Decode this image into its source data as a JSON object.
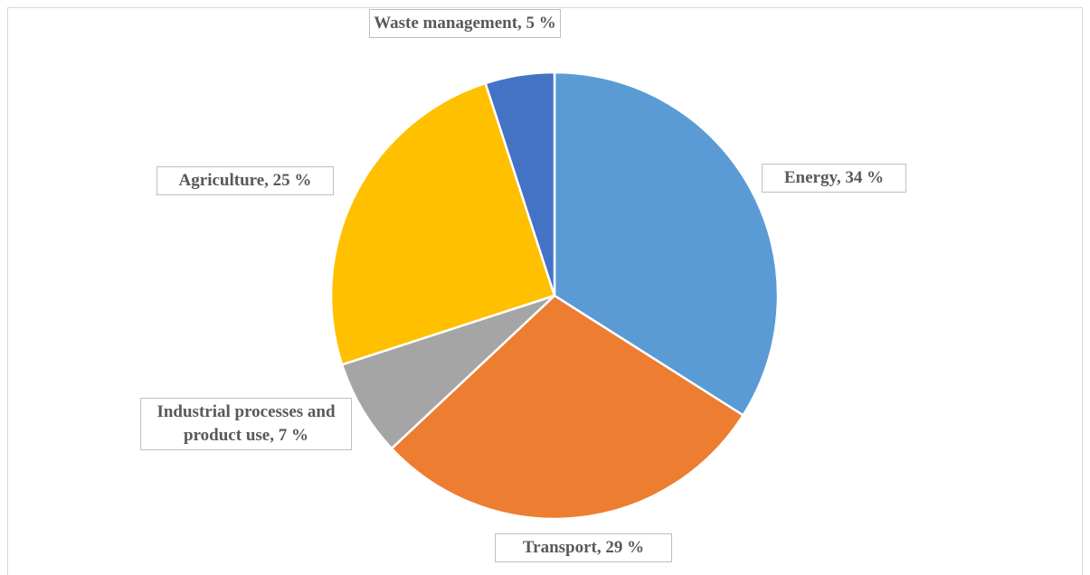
{
  "chart_data": {
    "type": "pie",
    "values": [
      34,
      29,
      7,
      25,
      5
    ],
    "value_labels": [
      "Energy, 34 %",
      "Transport, 29 %",
      "Industrial processes and product use, 7 %",
      "Agriculture, 25 %",
      "Waste management, 5 %"
    ],
    "colors": [
      "#5b9bd5",
      "#ed7d31",
      "#a5a5a5",
      "#ffc000",
      "#4472c4"
    ]
  }
}
